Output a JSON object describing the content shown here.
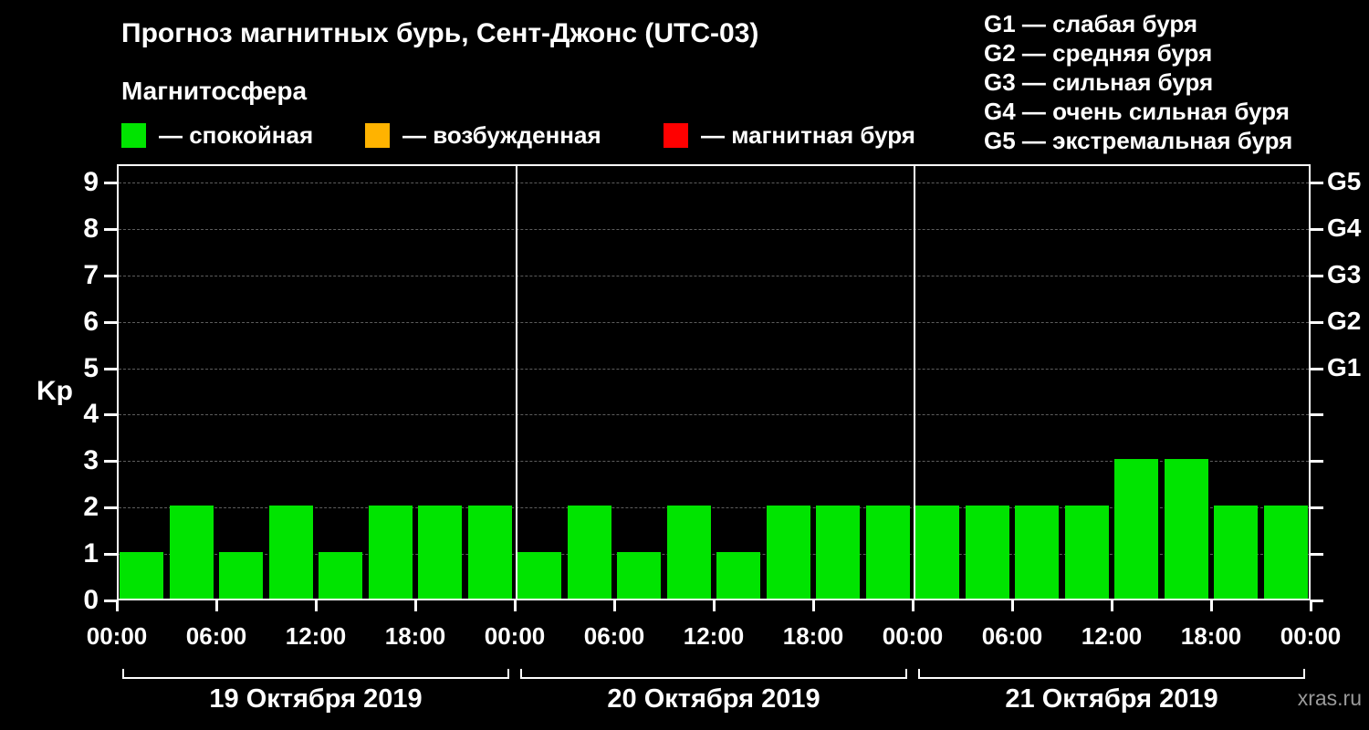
{
  "header": {
    "title": "Прогноз магнитных бурь, Сент-Джонс (UTC-03)",
    "subtitle": "Магнитосфера"
  },
  "legend": {
    "items": [
      {
        "label": "— спокойная",
        "color": "#00e400"
      },
      {
        "label": "— возбужденная",
        "color": "#ffb300"
      },
      {
        "label": "— магнитная буря",
        "color": "#ff0000"
      }
    ]
  },
  "storm_scale_lines": [
    "G1 — слабая буря",
    "G2 — средняя буря",
    "G3 — сильная буря",
    "G4 — очень сильная буря",
    "G5 — экстремальная буря"
  ],
  "watermark": "xras.ru",
  "chart_data": {
    "type": "bar",
    "title": "Прогноз магнитных бурь, Сент-Джонс (UTC-03)",
    "ylabel": "Kp",
    "ylim": [
      0,
      9.4
    ],
    "yticks": [
      0,
      1,
      2,
      3,
      4,
      5,
      6,
      7,
      8,
      9
    ],
    "grid": true,
    "bar_color": "#00e400",
    "right_scale": [
      {
        "label": "G1",
        "kp": 5
      },
      {
        "label": "G2",
        "kp": 6
      },
      {
        "label": "G3",
        "kp": 7
      },
      {
        "label": "G4",
        "kp": 8
      },
      {
        "label": "G5",
        "kp": 9
      }
    ],
    "x_ticks_per_day": [
      "00:00",
      "06:00",
      "12:00",
      "18:00"
    ],
    "x_end_tick": "00:00",
    "days": [
      {
        "date": "19 Октября 2019",
        "values": [
          1,
          2,
          1,
          2,
          1,
          2,
          2,
          2
        ]
      },
      {
        "date": "20 Октября 2019",
        "values": [
          1,
          2,
          1,
          2,
          1,
          2,
          2,
          2
        ]
      },
      {
        "date": "21 Октября 2019",
        "values": [
          2,
          2,
          2,
          2,
          3,
          3,
          2,
          2
        ]
      }
    ]
  }
}
